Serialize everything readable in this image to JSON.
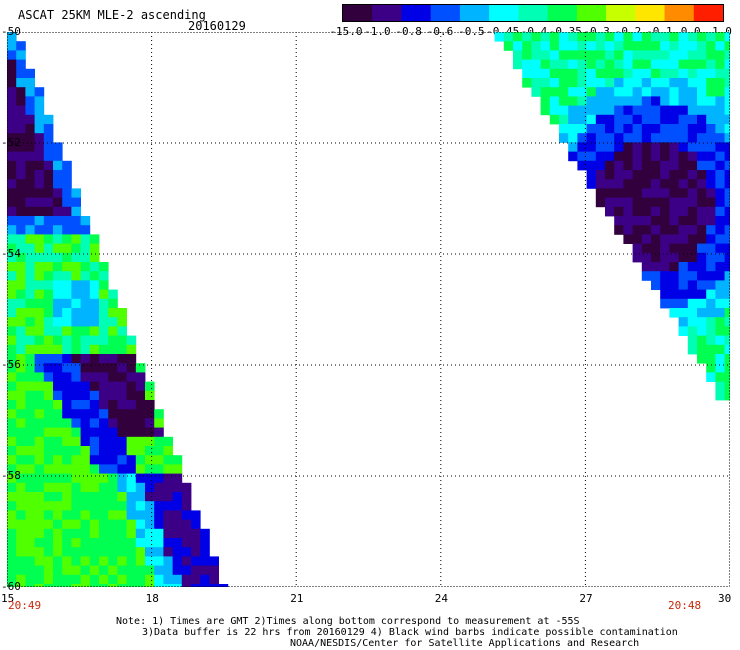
{
  "header": {
    "title": "ASCAT 25KM MLE-2 ascending",
    "date": "20160129"
  },
  "colorbar": {
    "tick_labels": [
      "-15.0",
      "-1.0",
      "-0.8",
      "-0.6",
      "-0.5",
      "-0.45",
      "-0.4",
      "-0.35",
      "-0.3",
      "-0.2",
      "-0.1",
      "0.0",
      "1.0"
    ],
    "colors": [
      "#32003c",
      "#3c0087",
      "#0000e6",
      "#0050ff",
      "#00b4ff",
      "#00ffff",
      "#00ffb4",
      "#00ff50",
      "#50ff00",
      "#c8ff00",
      "#ffe600",
      "#ff8c00",
      "#ff1e00"
    ]
  },
  "map": {
    "lon_labels": [
      "15",
      "18",
      "21",
      "24",
      "27",
      "30"
    ],
    "lat_labels": [
      "-50",
      "-52",
      "-54",
      "-56",
      "-58",
      "-60"
    ],
    "lon_range": [
      15,
      30
    ],
    "lat_range": [
      -60,
      -50
    ],
    "grid": "dotted"
  },
  "swath_times": {
    "left": "20:49",
    "right": "20:48"
  },
  "notes": {
    "line1": "Note: 1) Times are GMT 2)Times along bottom correspond to measurement at -55S",
    "line2": "3)Data buffer is 22 hrs from 20160129 4) Black wind barbs indicate possible contamination",
    "line3": "NOAA/NESDIS/Center for Satellite Applications and Research"
  }
}
